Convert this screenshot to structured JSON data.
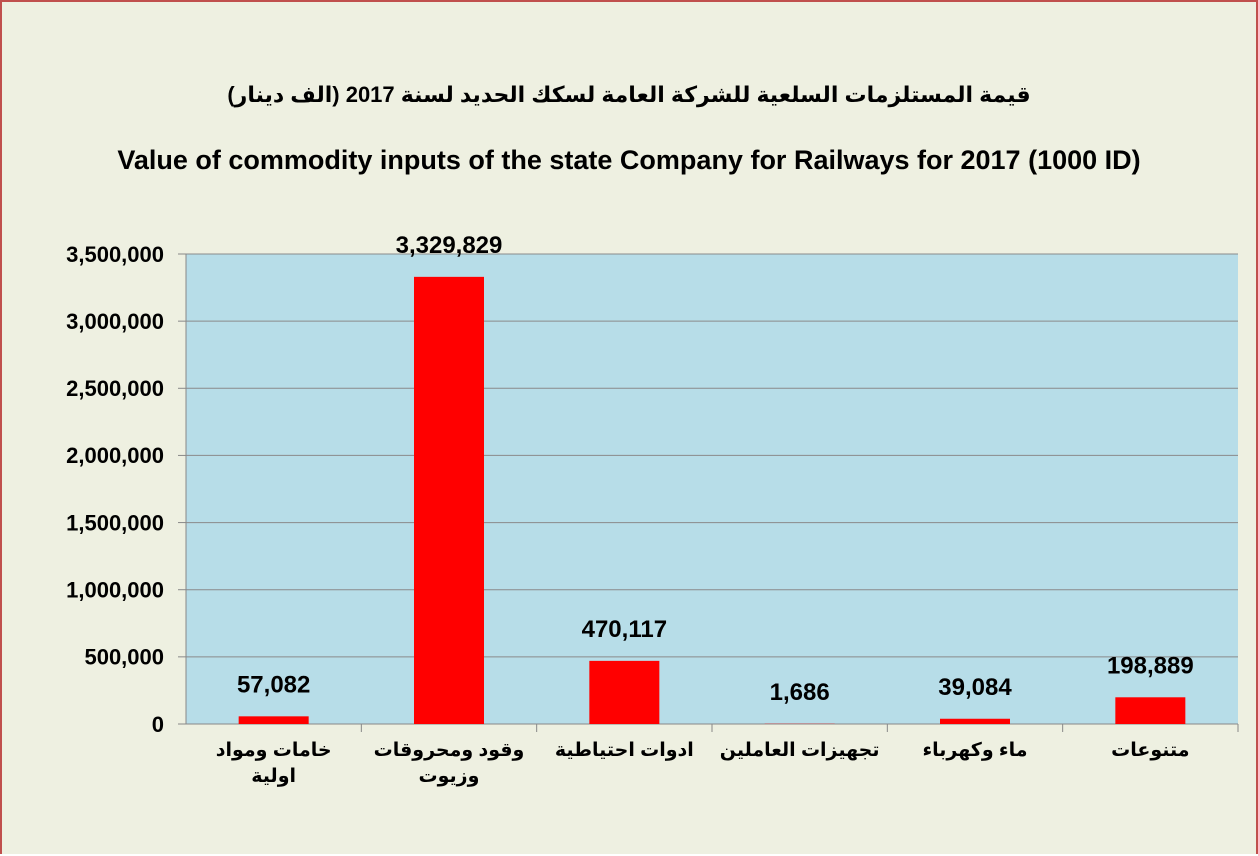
{
  "chart_data": {
    "type": "bar",
    "title": "قيمة المستلزمات السلعية  للشركة العامة لسكك الحديد لسنة 2017 (الف دينار)",
    "subtitle": "Value of commodity inputs of the state Company for Railways for 2017 (1000 ID)",
    "categories": [
      "خامات ومواد اولية",
      "وقود ومحروقات وزيوت",
      "ادوات احتياطية",
      "تجهيزات العاملين",
      "ماء وكهرباء",
      "متنوعات"
    ],
    "values": [
      57082,
      3329829,
      470117,
      1686,
      39084,
      198889
    ],
    "value_labels": [
      "57,082",
      "3,329,829",
      "470,117",
      "1,686",
      "39,084",
      "198,889"
    ],
    "color": "#ff0000",
    "ylim": [
      0,
      3500000
    ],
    "yticks": [
      0,
      {
        "value": 500000,
        "label": "500,000"
      },
      {
        "value": 1000000,
        "label": "1,000,000"
      },
      {
        "value": 1500000,
        "label": "1,500,000"
      },
      {
        "value": 2000000,
        "label": "2,000,000"
      },
      {
        "value": 2500000,
        "label": "2,500,000"
      },
      {
        "value": 3000000,
        "label": "3,000,000"
      },
      {
        "value": 3500000,
        "label": "3,500,000"
      }
    ],
    "grid": true
  }
}
